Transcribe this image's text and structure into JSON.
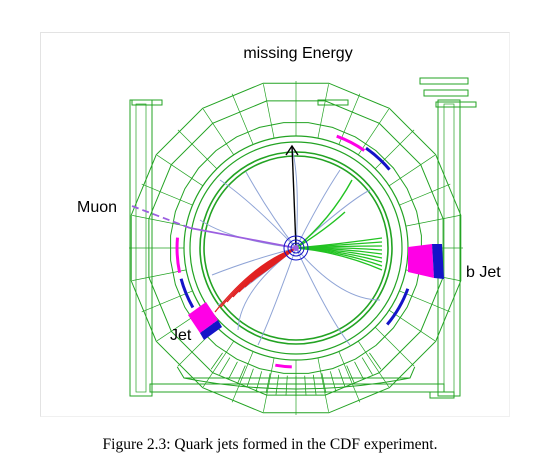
{
  "labels": {
    "missing_energy": "missing Energy",
    "muon": "Muon",
    "b_jet": "b Jet",
    "jet": "Jet"
  },
  "caption": "Figure 2.3: Quark jets formed in the CDF experiment.",
  "colors": {
    "detector_outline": "#23a323",
    "calorimeter_hit": "#ff00e6",
    "calorimeter_core": "#1414c8",
    "muon_track": "#9b5fe0",
    "jet_track_red": "#e12020",
    "jet_track_green": "#22c322",
    "soft_track": "#8fa4d6",
    "missing_energy_arrow": "#000000"
  }
}
